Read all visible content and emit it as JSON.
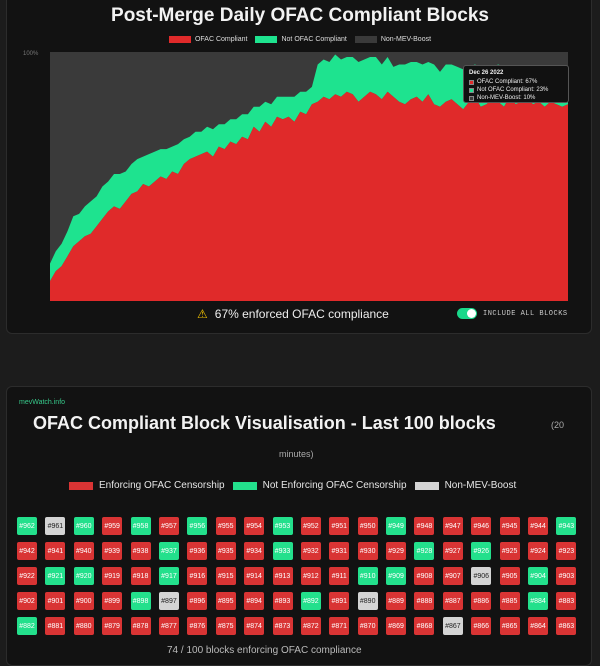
{
  "chart_data": {
    "type": "area",
    "title": "Post-Merge Daily OFAC Compliant Blocks",
    "ylabel_top_tick": "100%",
    "ylim": [
      0,
      100
    ],
    "legend": [
      "OFAC Compliant",
      "Not OFAC Compliant",
      "Non-MEV-Boost"
    ],
    "series": [
      {
        "name": "OFAC Compliant",
        "values": [
          8,
          12,
          14,
          18,
          22,
          24,
          26,
          27,
          30,
          33,
          36,
          38,
          37,
          40,
          43,
          44,
          47,
          46,
          48,
          50,
          49,
          52,
          51,
          55,
          57,
          58,
          59,
          60,
          58,
          62,
          61,
          64,
          63,
          66,
          65,
          70,
          68,
          72,
          70,
          74,
          73,
          74,
          72,
          76,
          75,
          79,
          80,
          82,
          81,
          83,
          82,
          84,
          83,
          80,
          82,
          84,
          83,
          81,
          84,
          82,
          80,
          79,
          81,
          82,
          80,
          83,
          79,
          78,
          80,
          81,
          79,
          77,
          80,
          82,
          78,
          79,
          81,
          80,
          78,
          82,
          79,
          80,
          81,
          79,
          80,
          78,
          80,
          79,
          78,
          79
        ]
      },
      {
        "name": "Not OFAC Compliant",
        "values": [
          7,
          8,
          9,
          10,
          12,
          11,
          12,
          13,
          12,
          13,
          12,
          13,
          14,
          12,
          12,
          13,
          11,
          13,
          12,
          11,
          12,
          10,
          12,
          10,
          9,
          10,
          9,
          10,
          11,
          9,
          10,
          9,
          10,
          9,
          10,
          8,
          10,
          8,
          9,
          8,
          9,
          8,
          10,
          8,
          9,
          7,
          15,
          15,
          15,
          16,
          15,
          14,
          15,
          16,
          15,
          14,
          15,
          14,
          14,
          12,
          15,
          16,
          15,
          14,
          15,
          13,
          16,
          14,
          15,
          14,
          15,
          16,
          14,
          13,
          16,
          14,
          13,
          15,
          16,
          12,
          15,
          14,
          13,
          14,
          13,
          15,
          14,
          13,
          15,
          13
        ]
      }
    ],
    "tooltip": {
      "date": "Dec 26 2022",
      "ofac": "OFAC Compliant: 67%",
      "not_ofac": "Not OFAC Compliant: 23%",
      "non_mev": "Non-MEV-Boost: 10%"
    }
  },
  "colors": {
    "ofac": "#e02a2a",
    "not_ofac": "#1ee38f",
    "non_mev": "#3a3a3a",
    "toggle": "#19d88a"
  },
  "compliance_text": "67% enforced OFAC compliance",
  "toggle_label": "INCLUDE ALL BLOCKS",
  "panel2": {
    "source": "mevWatch.info",
    "title": "OFAC Compliant Block Visualisation - Last 100 blocks",
    "title_note_1": "(20",
    "title_note_2": "minutes)",
    "legend": [
      "Enforcing OFAC Censorship",
      "Not Enforcing OFAC Censorship",
      "Non-MEV-Boost"
    ],
    "blocks": [
      {
        "id": "#962",
        "s": "not"
      },
      {
        "id": "#961",
        "s": "non"
      },
      {
        "id": "#960",
        "s": "not"
      },
      {
        "id": "#959",
        "s": "enf"
      },
      {
        "id": "#958",
        "s": "not"
      },
      {
        "id": "#957",
        "s": "enf"
      },
      {
        "id": "#956",
        "s": "not"
      },
      {
        "id": "#955",
        "s": "enf"
      },
      {
        "id": "#954",
        "s": "enf"
      },
      {
        "id": "#953",
        "s": "not"
      },
      {
        "id": "#952",
        "s": "enf"
      },
      {
        "id": "#951",
        "s": "enf"
      },
      {
        "id": "#950",
        "s": "enf"
      },
      {
        "id": "#949",
        "s": "not"
      },
      {
        "id": "#948",
        "s": "enf"
      },
      {
        "id": "#947",
        "s": "enf"
      },
      {
        "id": "#946",
        "s": "enf"
      },
      {
        "id": "#945",
        "s": "enf"
      },
      {
        "id": "#944",
        "s": "enf"
      },
      {
        "id": "#943",
        "s": "not"
      },
      {
        "id": "#942",
        "s": "enf"
      },
      {
        "id": "#941",
        "s": "enf"
      },
      {
        "id": "#940",
        "s": "enf"
      },
      {
        "id": "#939",
        "s": "enf"
      },
      {
        "id": "#938",
        "s": "enf"
      },
      {
        "id": "#937",
        "s": "not"
      },
      {
        "id": "#936",
        "s": "enf"
      },
      {
        "id": "#935",
        "s": "enf"
      },
      {
        "id": "#934",
        "s": "enf"
      },
      {
        "id": "#933",
        "s": "not"
      },
      {
        "id": "#932",
        "s": "enf"
      },
      {
        "id": "#931",
        "s": "enf"
      },
      {
        "id": "#930",
        "s": "enf"
      },
      {
        "id": "#929",
        "s": "enf"
      },
      {
        "id": "#928",
        "s": "not"
      },
      {
        "id": "#927",
        "s": "enf"
      },
      {
        "id": "#926",
        "s": "not"
      },
      {
        "id": "#925",
        "s": "enf"
      },
      {
        "id": "#924",
        "s": "enf"
      },
      {
        "id": "#923",
        "s": "enf"
      },
      {
        "id": "#922",
        "s": "enf"
      },
      {
        "id": "#921",
        "s": "not"
      },
      {
        "id": "#920",
        "s": "not"
      },
      {
        "id": "#919",
        "s": "enf"
      },
      {
        "id": "#918",
        "s": "enf"
      },
      {
        "id": "#917",
        "s": "not"
      },
      {
        "id": "#916",
        "s": "enf"
      },
      {
        "id": "#915",
        "s": "enf"
      },
      {
        "id": "#914",
        "s": "enf"
      },
      {
        "id": "#913",
        "s": "enf"
      },
      {
        "id": "#912",
        "s": "enf"
      },
      {
        "id": "#911",
        "s": "enf"
      },
      {
        "id": "#910",
        "s": "not"
      },
      {
        "id": "#909",
        "s": "not"
      },
      {
        "id": "#908",
        "s": "enf"
      },
      {
        "id": "#907",
        "s": "enf"
      },
      {
        "id": "#906",
        "s": "non"
      },
      {
        "id": "#905",
        "s": "enf"
      },
      {
        "id": "#904",
        "s": "not"
      },
      {
        "id": "#903",
        "s": "enf"
      },
      {
        "id": "#902",
        "s": "enf"
      },
      {
        "id": "#901",
        "s": "enf"
      },
      {
        "id": "#900",
        "s": "enf"
      },
      {
        "id": "#899",
        "s": "enf"
      },
      {
        "id": "#898",
        "s": "not"
      },
      {
        "id": "#897",
        "s": "non"
      },
      {
        "id": "#896",
        "s": "enf"
      },
      {
        "id": "#895",
        "s": "enf"
      },
      {
        "id": "#894",
        "s": "enf"
      },
      {
        "id": "#893",
        "s": "enf"
      },
      {
        "id": "#892",
        "s": "not"
      },
      {
        "id": "#891",
        "s": "enf"
      },
      {
        "id": "#890",
        "s": "non"
      },
      {
        "id": "#889",
        "s": "enf"
      },
      {
        "id": "#888",
        "s": "enf"
      },
      {
        "id": "#887",
        "s": "enf"
      },
      {
        "id": "#886",
        "s": "enf"
      },
      {
        "id": "#885",
        "s": "enf"
      },
      {
        "id": "#884",
        "s": "not"
      },
      {
        "id": "#883",
        "s": "enf"
      },
      {
        "id": "#882",
        "s": "not"
      },
      {
        "id": "#881",
        "s": "enf"
      },
      {
        "id": "#880",
        "s": "enf"
      },
      {
        "id": "#879",
        "s": "enf"
      },
      {
        "id": "#878",
        "s": "enf"
      },
      {
        "id": "#877",
        "s": "enf"
      },
      {
        "id": "#876",
        "s": "enf"
      },
      {
        "id": "#875",
        "s": "enf"
      },
      {
        "id": "#874",
        "s": "enf"
      },
      {
        "id": "#873",
        "s": "enf"
      },
      {
        "id": "#872",
        "s": "enf"
      },
      {
        "id": "#871",
        "s": "enf"
      },
      {
        "id": "#870",
        "s": "enf"
      },
      {
        "id": "#869",
        "s": "enf"
      },
      {
        "id": "#868",
        "s": "enf"
      },
      {
        "id": "#867",
        "s": "non"
      },
      {
        "id": "#866",
        "s": "enf"
      },
      {
        "id": "#865",
        "s": "enf"
      },
      {
        "id": "#864",
        "s": "enf"
      },
      {
        "id": "#863",
        "s": "enf"
      }
    ],
    "footer": "74 / 100 blocks enforcing OFAC compliance"
  }
}
